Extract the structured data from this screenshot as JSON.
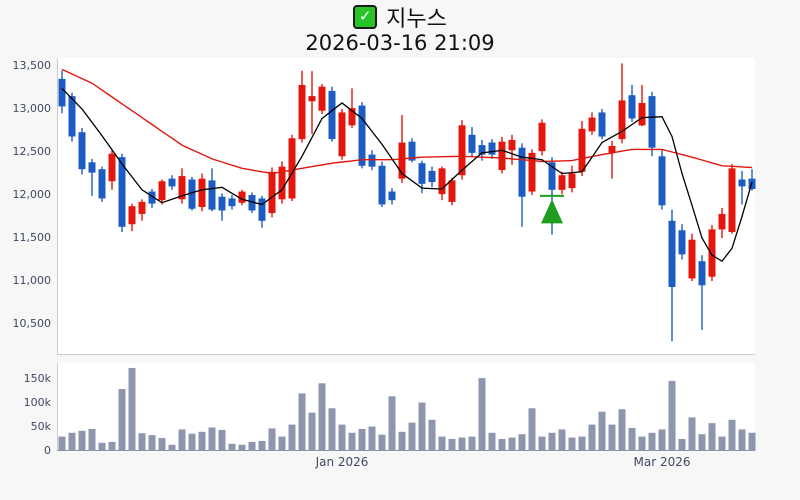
{
  "title": {
    "checkbox_glyph": "✓",
    "text": "지누스",
    "subtitle": "2026-03-16 21:09"
  },
  "colors": {
    "up": "#e3170d",
    "down": "#1d5cc2",
    "ma_short": "#000000",
    "ma_long": "#e3170d",
    "volume_bar": "#8d96ad",
    "marker_green": "#1e9e1e",
    "axis_text": "#3f4a5e",
    "checkbox_green": "#27c327"
  },
  "chart_data": {
    "type": "candlestick+volume",
    "title": "지누스",
    "timestamp": "2026-03-16 21:09",
    "legend_position": "none",
    "grid": false,
    "price_axis": {
      "ticks": [
        13500,
        13000,
        12500,
        12000,
        11500,
        11000,
        10500
      ],
      "tick_labels": [
        "13,500",
        "13,000",
        "12,500",
        "12,000",
        "11,500",
        "11,000",
        "10,500"
      ],
      "range": [
        10280,
        13560
      ]
    },
    "volume_axis": {
      "ticks": [
        150,
        100,
        50,
        0
      ],
      "tick_labels": [
        "150k",
        "100k",
        "50k",
        "0"
      ],
      "unit": 1000,
      "range": [
        0,
        185
      ]
    },
    "x_axis": {
      "ticks": [
        {
          "label": "Jan 2026",
          "index": 28
        },
        {
          "label": "Mar 2026",
          "index": 60
        }
      ]
    },
    "candles_format": [
      "open",
      "high",
      "low",
      "close",
      "volume_k"
    ],
    "candles": [
      [
        13350,
        13445,
        12950,
        13030,
        30
      ],
      [
        13150,
        13190,
        12620,
        12680,
        38
      ],
      [
        12730,
        12780,
        12240,
        12300,
        42
      ],
      [
        12380,
        12420,
        11990,
        12260,
        46
      ],
      [
        12300,
        12330,
        11920,
        11960,
        17
      ],
      [
        12160,
        12520,
        12060,
        12480,
        19
      ],
      [
        12440,
        12480,
        11570,
        11630,
        129
      ],
      [
        11660,
        11900,
        11580,
        11870,
        173
      ],
      [
        11780,
        11950,
        11700,
        11920,
        37
      ],
      [
        12040,
        12070,
        11850,
        11900,
        33
      ],
      [
        11940,
        12180,
        11890,
        12160,
        27
      ],
      [
        12190,
        12230,
        12060,
        12100,
        13
      ],
      [
        11950,
        12310,
        11900,
        12220,
        45
      ],
      [
        12180,
        12210,
        11820,
        11840,
        36
      ],
      [
        11860,
        12250,
        11810,
        12190,
        40
      ],
      [
        12170,
        12310,
        11810,
        11830,
        49
      ],
      [
        11980,
        12020,
        11700,
        11820,
        44
      ],
      [
        11960,
        12000,
        11830,
        11870,
        15
      ],
      [
        11910,
        12060,
        11880,
        12040,
        13
      ],
      [
        12000,
        12030,
        11790,
        11820,
        19
      ],
      [
        11960,
        11990,
        11620,
        11700,
        21
      ],
      [
        11790,
        12320,
        11740,
        12270,
        47
      ],
      [
        11950,
        12390,
        11900,
        12330,
        30
      ],
      [
        11960,
        12700,
        11930,
        12660,
        55
      ],
      [
        12650,
        13445,
        12610,
        13280,
        120
      ],
      [
        13090,
        13440,
        12710,
        13150,
        80
      ],
      [
        12980,
        13290,
        12940,
        13260,
        141
      ],
      [
        13210,
        13260,
        12620,
        12650,
        89
      ],
      [
        12450,
        13000,
        12410,
        12960,
        55
      ],
      [
        12810,
        13240,
        12780,
        13010,
        38
      ],
      [
        13040,
        13080,
        12310,
        12340,
        46
      ],
      [
        12470,
        12520,
        12290,
        12330,
        51
      ],
      [
        12340,
        12390,
        11860,
        11890,
        34
      ],
      [
        12040,
        12080,
        11890,
        11940,
        114
      ],
      [
        12190,
        12930,
        12140,
        12610,
        40
      ],
      [
        12620,
        12660,
        12380,
        12400,
        59
      ],
      [
        12370,
        12400,
        12020,
        12130,
        101
      ],
      [
        12280,
        12330,
        12090,
        12150,
        65
      ],
      [
        12010,
        12330,
        11940,
        12310,
        30
      ],
      [
        11920,
        12200,
        11880,
        12170,
        25
      ],
      [
        12230,
        12870,
        12180,
        12810,
        28
      ],
      [
        12700,
        12790,
        12440,
        12490,
        30
      ],
      [
        12580,
        12640,
        12400,
        12470,
        152
      ],
      [
        12610,
        12650,
        12420,
        12470,
        38
      ],
      [
        12290,
        12675,
        12250,
        12620,
        25
      ],
      [
        12520,
        12700,
        12350,
        12640,
        28
      ],
      [
        12550,
        12600,
        11630,
        11980,
        35
      ],
      [
        12040,
        12530,
        12000,
        12490,
        89
      ],
      [
        12510,
        12880,
        12460,
        12840,
        30
      ],
      [
        12380,
        12440,
        11540,
        12060,
        38
      ],
      [
        12060,
        12270,
        12010,
        12230,
        45
      ],
      [
        12080,
        12340,
        12030,
        12250,
        28
      ],
      [
        12270,
        12860,
        12220,
        12770,
        30
      ],
      [
        12740,
        12960,
        12700,
        12900,
        55
      ],
      [
        12960,
        13000,
        12650,
        12680,
        82
      ],
      [
        12490,
        12630,
        12190,
        12570,
        55
      ],
      [
        12650,
        13530,
        12600,
        13100,
        87
      ],
      [
        13160,
        13280,
        12850,
        12890,
        48
      ],
      [
        12810,
        13280,
        12800,
        13070,
        30
      ],
      [
        13150,
        13200,
        12450,
        12550,
        38
      ],
      [
        12450,
        12520,
        11830,
        11880,
        45
      ],
      [
        11700,
        11830,
        10300,
        10930,
        146
      ],
      [
        11590,
        11660,
        11250,
        11310,
        25
      ],
      [
        11030,
        11550,
        11000,
        11480,
        70
      ],
      [
        11230,
        11300,
        10430,
        10950,
        35
      ],
      [
        11050,
        11650,
        11000,
        11600,
        58
      ],
      [
        11600,
        11850,
        11500,
        11780,
        30
      ],
      [
        11570,
        12360,
        11550,
        12310,
        65
      ],
      [
        12180,
        12280,
        11890,
        12100,
        45
      ],
      [
        12190,
        12300,
        12050,
        12070,
        38
      ]
    ],
    "ma_short_points": [
      [
        0,
        13240
      ],
      [
        2,
        13000
      ],
      [
        4,
        12690
      ],
      [
        6,
        12360
      ],
      [
        8,
        12060
      ],
      [
        10,
        11910
      ],
      [
        12,
        11990
      ],
      [
        14,
        12060
      ],
      [
        16,
        12090
      ],
      [
        18,
        11950
      ],
      [
        20,
        11890
      ],
      [
        22,
        12060
      ],
      [
        24,
        12450
      ],
      [
        26,
        12890
      ],
      [
        28,
        13070
      ],
      [
        30,
        12890
      ],
      [
        32,
        12590
      ],
      [
        34,
        12250
      ],
      [
        36,
        12080
      ],
      [
        38,
        12070
      ],
      [
        40,
        12290
      ],
      [
        42,
        12490
      ],
      [
        44,
        12520
      ],
      [
        46,
        12440
      ],
      [
        48,
        12410
      ],
      [
        50,
        12250
      ],
      [
        52,
        12270
      ],
      [
        54,
        12610
      ],
      [
        56,
        12740
      ],
      [
        58,
        12900
      ],
      [
        60,
        12910
      ],
      [
        61,
        12680
      ],
      [
        62,
        12250
      ],
      [
        63,
        11880
      ],
      [
        64,
        11500
      ],
      [
        65,
        11300
      ],
      [
        66,
        11230
      ],
      [
        67,
        11380
      ],
      [
        68,
        11750
      ],
      [
        69,
        12150
      ]
    ],
    "ma_long_points": [
      [
        0,
        13460
      ],
      [
        3,
        13300
      ],
      [
        6,
        13060
      ],
      [
        9,
        12820
      ],
      [
        12,
        12580
      ],
      [
        15,
        12420
      ],
      [
        18,
        12310
      ],
      [
        21,
        12250
      ],
      [
        24,
        12310
      ],
      [
        27,
        12370
      ],
      [
        30,
        12410
      ],
      [
        33,
        12410
      ],
      [
        36,
        12440
      ],
      [
        40,
        12450
      ],
      [
        44,
        12430
      ],
      [
        48,
        12390
      ],
      [
        51,
        12400
      ],
      [
        54,
        12470
      ],
      [
        57,
        12530
      ],
      [
        60,
        12530
      ],
      [
        63,
        12440
      ],
      [
        66,
        12340
      ],
      [
        69,
        12320
      ]
    ],
    "marker": {
      "type": "triangle-up",
      "index": 49,
      "line_price": 11990,
      "apex_price": 11950,
      "base_price": 11670,
      "half_width": 11
    }
  }
}
